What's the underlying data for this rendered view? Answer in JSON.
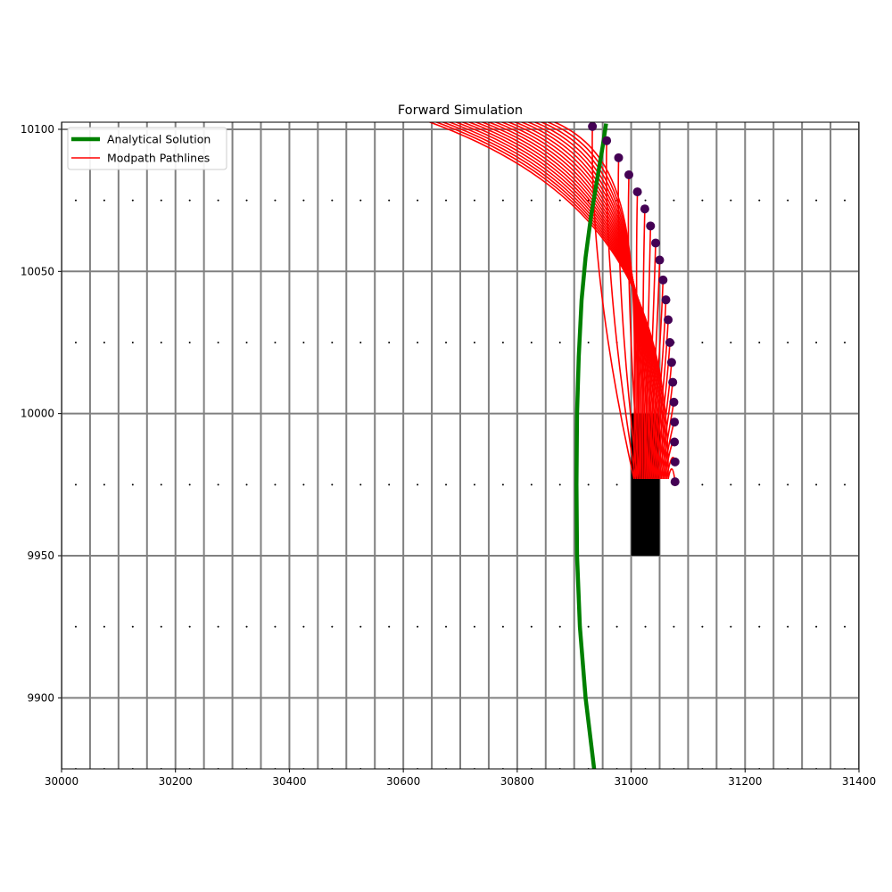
{
  "chart_data": {
    "type": "line",
    "title": "Forward Simulation",
    "xlabel": "",
    "ylabel": "",
    "xlim": [
      30000,
      31400
    ],
    "ylim": [
      9875,
      10102.5
    ],
    "x_ticks": [
      30000,
      30200,
      30400,
      30600,
      30800,
      31000,
      31200,
      31400
    ],
    "x_tick_labels": [
      "30000",
      "30200",
      "30400",
      "30600",
      "30800",
      "31000",
      "31200",
      "31400"
    ],
    "y_ticks": [
      9900,
      9950,
      10000,
      10050,
      10100
    ],
    "y_tick_labels": [
      "9900",
      "9950",
      "10000",
      "10050",
      "10100"
    ],
    "grid": {
      "column_spacing": 50,
      "row_lines": [
        9900,
        9950,
        10000,
        10050,
        10100
      ],
      "color": "#808080"
    },
    "legend": {
      "placement": "top-left",
      "entries": [
        {
          "label": "Analytical Solution",
          "color": "#008000"
        },
        {
          "label": "Modpath Pathlines",
          "color": "#ff0000"
        }
      ]
    },
    "well": {
      "x0": 31000,
      "x1": 31050,
      "y0": 9950,
      "y1": 10000,
      "color": "#000000"
    },
    "analytical_solution": {
      "color": "#008000",
      "x": [
        30935,
        30920,
        30910,
        30905,
        30904,
        30905,
        30908,
        30913,
        30920,
        30930,
        30940,
        30950,
        30956
      ],
      "y": [
        9875,
        9900,
        9925,
        9950,
        9975,
        10000,
        10020,
        10040,
        10055,
        10070,
        10082,
        10094,
        10102
      ]
    },
    "pathline_endpoints": {
      "color": "#440154",
      "points": [
        [
          31077,
          9976
        ],
        [
          31077,
          9983
        ],
        [
          31076,
          9990
        ],
        [
          31076,
          9997
        ],
        [
          31075,
          10004
        ],
        [
          31073,
          10011
        ],
        [
          31071,
          10018
        ],
        [
          31068,
          10025
        ],
        [
          31065,
          10033
        ],
        [
          31061,
          10040
        ],
        [
          31056,
          10047
        ],
        [
          31050,
          10054
        ],
        [
          31043,
          10060
        ],
        [
          31034,
          10066
        ],
        [
          31024,
          10072
        ],
        [
          31011,
          10078
        ],
        [
          30996,
          10084
        ],
        [
          30978,
          10090
        ],
        [
          30957,
          10096
        ],
        [
          30932,
          10101
        ]
      ]
    },
    "pathline_release": {
      "x_range": [
        31005,
        31065
      ],
      "y": 9977,
      "count": 20
    },
    "pathlines": {
      "color": "#ff0000",
      "count": 20
    },
    "cell_center_markers": {
      "x_start": 30025,
      "x_step": 50,
      "y": [
        10075,
        10025,
        9975,
        9925,
        9875
      ]
    }
  }
}
